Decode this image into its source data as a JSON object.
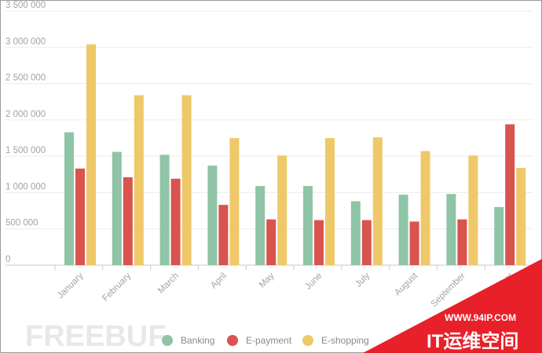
{
  "chart_data": {
    "type": "bar",
    "categories": [
      "January",
      "February",
      "March",
      "April",
      "May",
      "June",
      "July",
      "August",
      "September",
      "October"
    ],
    "visible_category_labels": [
      "January",
      "February",
      "March",
      "April",
      "May",
      "June",
      "July",
      "August",
      "September",
      "ber"
    ],
    "series": [
      {
        "name": "Banking",
        "color": "#8fc4a6",
        "values": [
          1830000,
          1560000,
          1520000,
          1370000,
          1090000,
          1090000,
          880000,
          970000,
          980000,
          800000
        ]
      },
      {
        "name": "E-payment",
        "color": "#d9534f",
        "values": [
          1330000,
          1210000,
          1190000,
          830000,
          630000,
          620000,
          620000,
          600000,
          630000,
          1940000
        ]
      },
      {
        "name": "E-shopping",
        "color": "#efc969",
        "values": [
          3040000,
          2340000,
          2340000,
          1750000,
          1510000,
          1750000,
          1760000,
          1570000,
          1510000,
          1340000
        ]
      }
    ],
    "y_ticks": [
      "0",
      "500 000",
      "1 000 000",
      "1 500 000",
      "2 000 000",
      "2 500 000",
      "3 000 000",
      "3 500 000"
    ],
    "ylim": [
      0,
      3500000
    ],
    "grid": true,
    "legend_position": "bottom"
  },
  "watermarks": {
    "left_logo": "FREEBUF",
    "right_url": "WWW.94IP.COM",
    "right_title": "IT运维空间",
    "corner_color": "#e8202a"
  }
}
